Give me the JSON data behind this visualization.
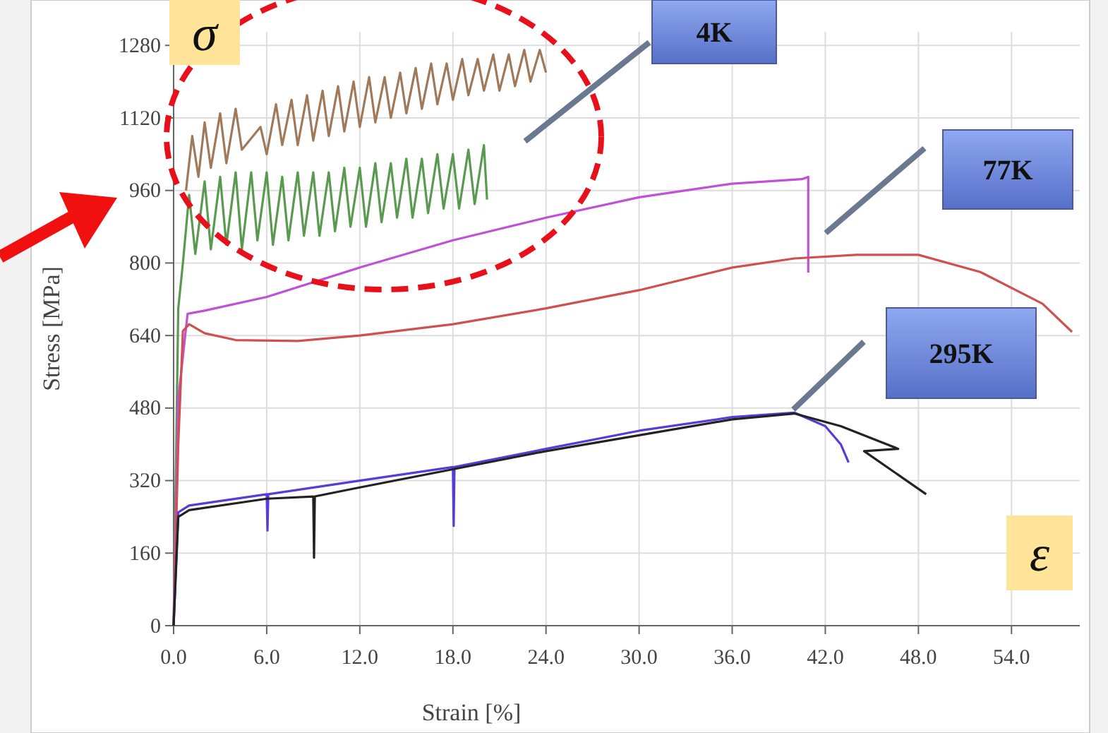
{
  "chart_data": {
    "type": "line",
    "xlabel": "Strain [%]",
    "ylabel": "Stress [MPa]",
    "xlim": [
      0,
      58.4
    ],
    "ylim": [
      0,
      1310
    ],
    "xticks": [
      {
        "value": 0,
        "label": "0.0"
      },
      {
        "value": 6,
        "label": "6.0"
      },
      {
        "value": 12,
        "label": "12.0"
      },
      {
        "value": 18,
        "label": "18.0"
      },
      {
        "value": 24,
        "label": "24.0"
      },
      {
        "value": 30,
        "label": "30.0"
      },
      {
        "value": 36,
        "label": "36.0"
      },
      {
        "value": 42,
        "label": "42.0"
      },
      {
        "value": 48,
        "label": "48.0"
      },
      {
        "value": 54,
        "label": "54.0"
      }
    ],
    "yticks": [
      0,
      160,
      320,
      480,
      640,
      800,
      960,
      1120,
      1280
    ],
    "grid": true,
    "marker": "none",
    "line_style": "solid",
    "annotations": [
      "σ",
      "ε",
      "4K",
      "77K",
      "295K"
    ],
    "series": [
      {
        "color": "#a0785a",
        "x": [
          0.8,
          1.2,
          1.6,
          2.0,
          2.4,
          3.0,
          3.4,
          4.0,
          4.4,
          5.6,
          6.0,
          6.6,
          7.0,
          7.6,
          8.0,
          8.6,
          9.0,
          9.6,
          10.0,
          10.6,
          11.0,
          11.6,
          12.0,
          12.6,
          13.0,
          13.6,
          14.0,
          14.6,
          15.0,
          15.6,
          16.0,
          16.6,
          17.0,
          17.6,
          18.0,
          18.6,
          19.0,
          19.6,
          20.0,
          20.6,
          21.0,
          21.6,
          22.0,
          22.6,
          23.0,
          23.6,
          24.0
        ],
        "values": [
          960,
          1080,
          990,
          1110,
          1010,
          1130,
          1020,
          1140,
          1050,
          1100,
          1040,
          1150,
          1060,
          1160,
          1060,
          1170,
          1070,
          1180,
          1080,
          1190,
          1090,
          1200,
          1100,
          1210,
          1110,
          1210,
          1120,
          1220,
          1130,
          1230,
          1140,
          1240,
          1150,
          1240,
          1160,
          1250,
          1170,
          1250,
          1180,
          1260,
          1180,
          1260,
          1190,
          1270,
          1200,
          1270,
          1220
        ]
      },
      {
        "color": "#5a9a50",
        "x": [
          0,
          0.3,
          0.6,
          1.0,
          1.4,
          2.0,
          2.4,
          3.0,
          3.4,
          4.0,
          4.4,
          5.0,
          5.4,
          6.0,
          6.4,
          7.0,
          7.4,
          8.0,
          8.4,
          9.0,
          9.4,
          10.0,
          10.4,
          11.0,
          11.4,
          12.0,
          12.4,
          13.0,
          13.4,
          14.0,
          14.4,
          15.0,
          15.4,
          16.0,
          16.4,
          17.0,
          17.4,
          18.0,
          18.4,
          19.0,
          19.4,
          20.0,
          20.2
        ],
        "values": [
          0,
          700,
          800,
          950,
          820,
          980,
          830,
          990,
          840,
          1000,
          830,
          1000,
          850,
          1000,
          840,
          990,
          850,
          1000,
          860,
          1000,
          860,
          1000,
          870,
          1010,
          880,
          1010,
          880,
          1020,
          890,
          1020,
          900,
          1030,
          900,
          1030,
          910,
          1040,
          920,
          1040,
          920,
          1050,
          930,
          1060,
          940
        ]
      },
      {
        "color": "#c050d8",
        "x": [
          0,
          0.3,
          0.9,
          2,
          6,
          12,
          18,
          24,
          30,
          36,
          40.5,
          40.9,
          40.9
        ],
        "values": [
          0,
          500,
          688,
          695,
          725,
          790,
          850,
          900,
          945,
          975,
          985,
          990,
          779
        ]
      },
      {
        "color": "#d05050",
        "x": [
          0,
          0.3,
          0.6,
          1.0,
          2,
          4,
          8,
          12,
          18,
          24,
          30,
          36,
          40,
          44,
          48,
          52,
          56,
          57.9
        ],
        "values": [
          0,
          400,
          650,
          665,
          645,
          630,
          628,
          640,
          665,
          700,
          740,
          790,
          810,
          818,
          818,
          780,
          710,
          648
        ]
      },
      {
        "color": "#5a3ad8",
        "x": [
          0,
          0.3,
          1,
          6,
          6.05,
          6.1,
          12,
          18,
          18.05,
          18.1,
          24,
          30,
          36,
          40,
          42,
          43,
          43.5
        ],
        "values": [
          0,
          250,
          265,
          290,
          210,
          290,
          320,
          350,
          220,
          350,
          390,
          430,
          460,
          470,
          440,
          400,
          360
        ]
      },
      {
        "color": "#222222",
        "x": [
          0,
          0.3,
          1,
          6,
          9,
          9.05,
          9.1,
          12,
          18,
          24,
          30,
          36,
          40,
          43,
          46.7,
          44.5,
          48.5
        ],
        "values": [
          0,
          240,
          255,
          280,
          285,
          150,
          285,
          305,
          345,
          385,
          420,
          455,
          468,
          440,
          390,
          385,
          290
        ]
      }
    ]
  }
}
